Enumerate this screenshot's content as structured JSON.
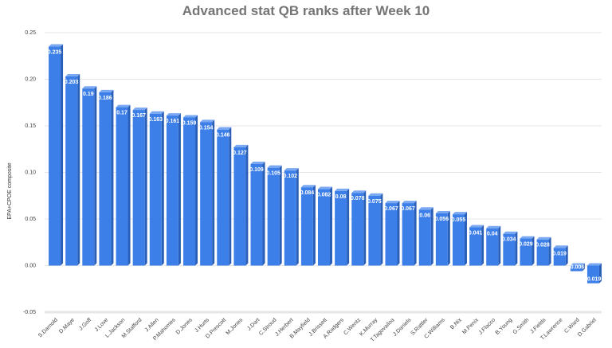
{
  "chart_data": {
    "type": "bar",
    "title": "Advanced stat QB ranks after Week 10",
    "xlabel": "",
    "ylabel": "EPA+CPOE composite",
    "ylim": [
      -0.05,
      0.25
    ],
    "yticks": [
      "0.25",
      "0.20",
      "0.15",
      "0.10",
      "0.05",
      "0.00",
      "-0.05"
    ],
    "ytick_values": [
      0.25,
      0.2,
      0.15,
      0.1,
      0.05,
      0,
      -0.05
    ],
    "grid": true,
    "legend": "none",
    "bar_color": "#3d7fe8",
    "categories": [
      "S.Darnold",
      "D.Maye",
      "J.Goff",
      "J.Love",
      "L.Jackson",
      "M.Stafford",
      "J.Allen",
      "P.Mahomes",
      "D.Jones",
      "J.Hurts",
      "D.Prescott",
      "M.Jones",
      "J.Dart",
      "C.Stroud",
      "J.Herbert",
      "B.Mayfield",
      "J.Brissett",
      "A.Rodgers",
      "C.Wentz",
      "K.Murray",
      "T.Tagovailoa",
      "J.Daniels",
      "S.Rattler",
      "C.Williams",
      "B.Nix",
      "M.Penix",
      "J.Flacco",
      "B.Young",
      "G.Smith",
      "J.Fields",
      "T.Lawrence",
      "C.Ward",
      "D.Gabriel"
    ],
    "values": [
      0.235,
      0.203,
      0.19,
      0.186,
      0.17,
      0.167,
      0.163,
      0.161,
      0.159,
      0.154,
      0.146,
      0.127,
      0.109,
      0.105,
      0.102,
      0.084,
      0.082,
      0.08,
      0.078,
      0.075,
      0.067,
      0.067,
      0.06,
      0.056,
      0.055,
      0.041,
      0.04,
      0.034,
      0.029,
      0.028,
      0.019,
      -0.006,
      -0.019
    ],
    "labels": [
      "0.235",
      "0.203",
      "0.19",
      "0.186",
      "0.17",
      "0.167",
      "0.163",
      "0.161",
      "0.159",
      "0.154",
      "0.146",
      "0.127",
      "0.109",
      "0.105",
      "0.102",
      "0.084",
      "0.082",
      "0.08",
      "0.078",
      "0.075",
      "0.067",
      "0.067",
      "0.06",
      "0.056",
      "0.055",
      "0.041",
      "0.04",
      "0.034",
      "0.029",
      "0.028",
      "0.019",
      "-0.006",
      "-0.019"
    ]
  }
}
